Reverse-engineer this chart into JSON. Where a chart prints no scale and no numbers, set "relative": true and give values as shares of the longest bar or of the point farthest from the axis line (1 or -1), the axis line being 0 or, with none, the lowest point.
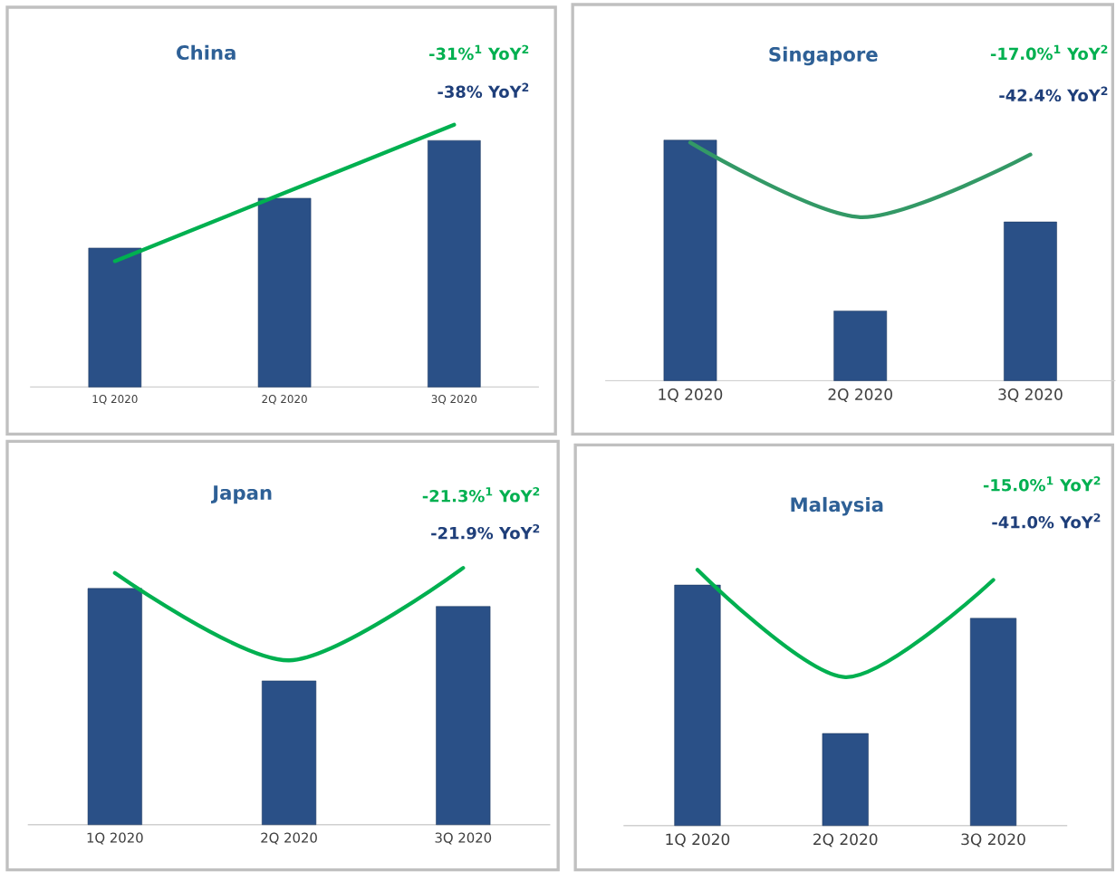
{
  "chart_data": [
    {
      "type": "bar",
      "title": "China",
      "annotations": [
        "-31%$^{1}$ YoY$^{2}$",
        "-38% YoY$^{2}$"
      ],
      "categories": [
        "1Q 2020",
        "2Q 2020",
        "3Q 2020"
      ],
      "relative": true,
      "series": [
        {
          "color": "#2a5087",
          "values": [
            0.53,
            0.72,
            0.94
          ]
        },
        {
          "type": "line",
          "color": "#00b050",
          "values": [
            0.48,
            0.74,
            1
          ]
        }
      ]
    },
    {
      "type": "bar",
      "title": "Singapore",
      "annotations": [
        "-17.0%$^{1}$ YoY$^{2}$",
        "-42.4% YoY$^{2}$"
      ],
      "categories": [
        "1Q 2020",
        "2Q 2020",
        "3Q 2020"
      ],
      "relative": true,
      "series": [
        {
          "color": "#2a5087",
          "values": [
            1,
            0.29,
            0.66
          ]
        },
        {
          "type": "line",
          "color": "#339966",
          "values": [
            0.99,
            0.68,
            0.94
          ]
        }
      ]
    },
    {
      "type": "bar",
      "title": "Japan",
      "annotations": [
        "-21.3%$^{1}$ YoY$^{2}$",
        "-21.9% YoY$^{2}$"
      ],
      "categories": [
        "1Q 2020",
        "2Q 2020",
        "3Q 2020"
      ],
      "relative": true,
      "series": [
        {
          "color": "#2a5087",
          "values": [
            0.92,
            0.56,
            0.85
          ]
        },
        {
          "type": "line",
          "color": "#00b050",
          "values": [
            0.98,
            0.64,
            1
          ]
        }
      ]
    },
    {
      "type": "bar",
      "title": "Malaysia",
      "annotations": [
        "-15.0%$^{1}$ YoY$^{2}$",
        "-41.0% YoY$^{2}$"
      ],
      "categories": [
        "1Q 2020",
        "2Q 2020",
        "3Q 2020"
      ],
      "relative": true,
      "series": [
        {
          "color": "#2a5087",
          "values": [
            0.94,
            0.36,
            0.81
          ]
        },
        {
          "type": "line",
          "color": "#00b050",
          "values": [
            1,
            0.58,
            0.96
          ]
        }
      ]
    }
  ]
}
